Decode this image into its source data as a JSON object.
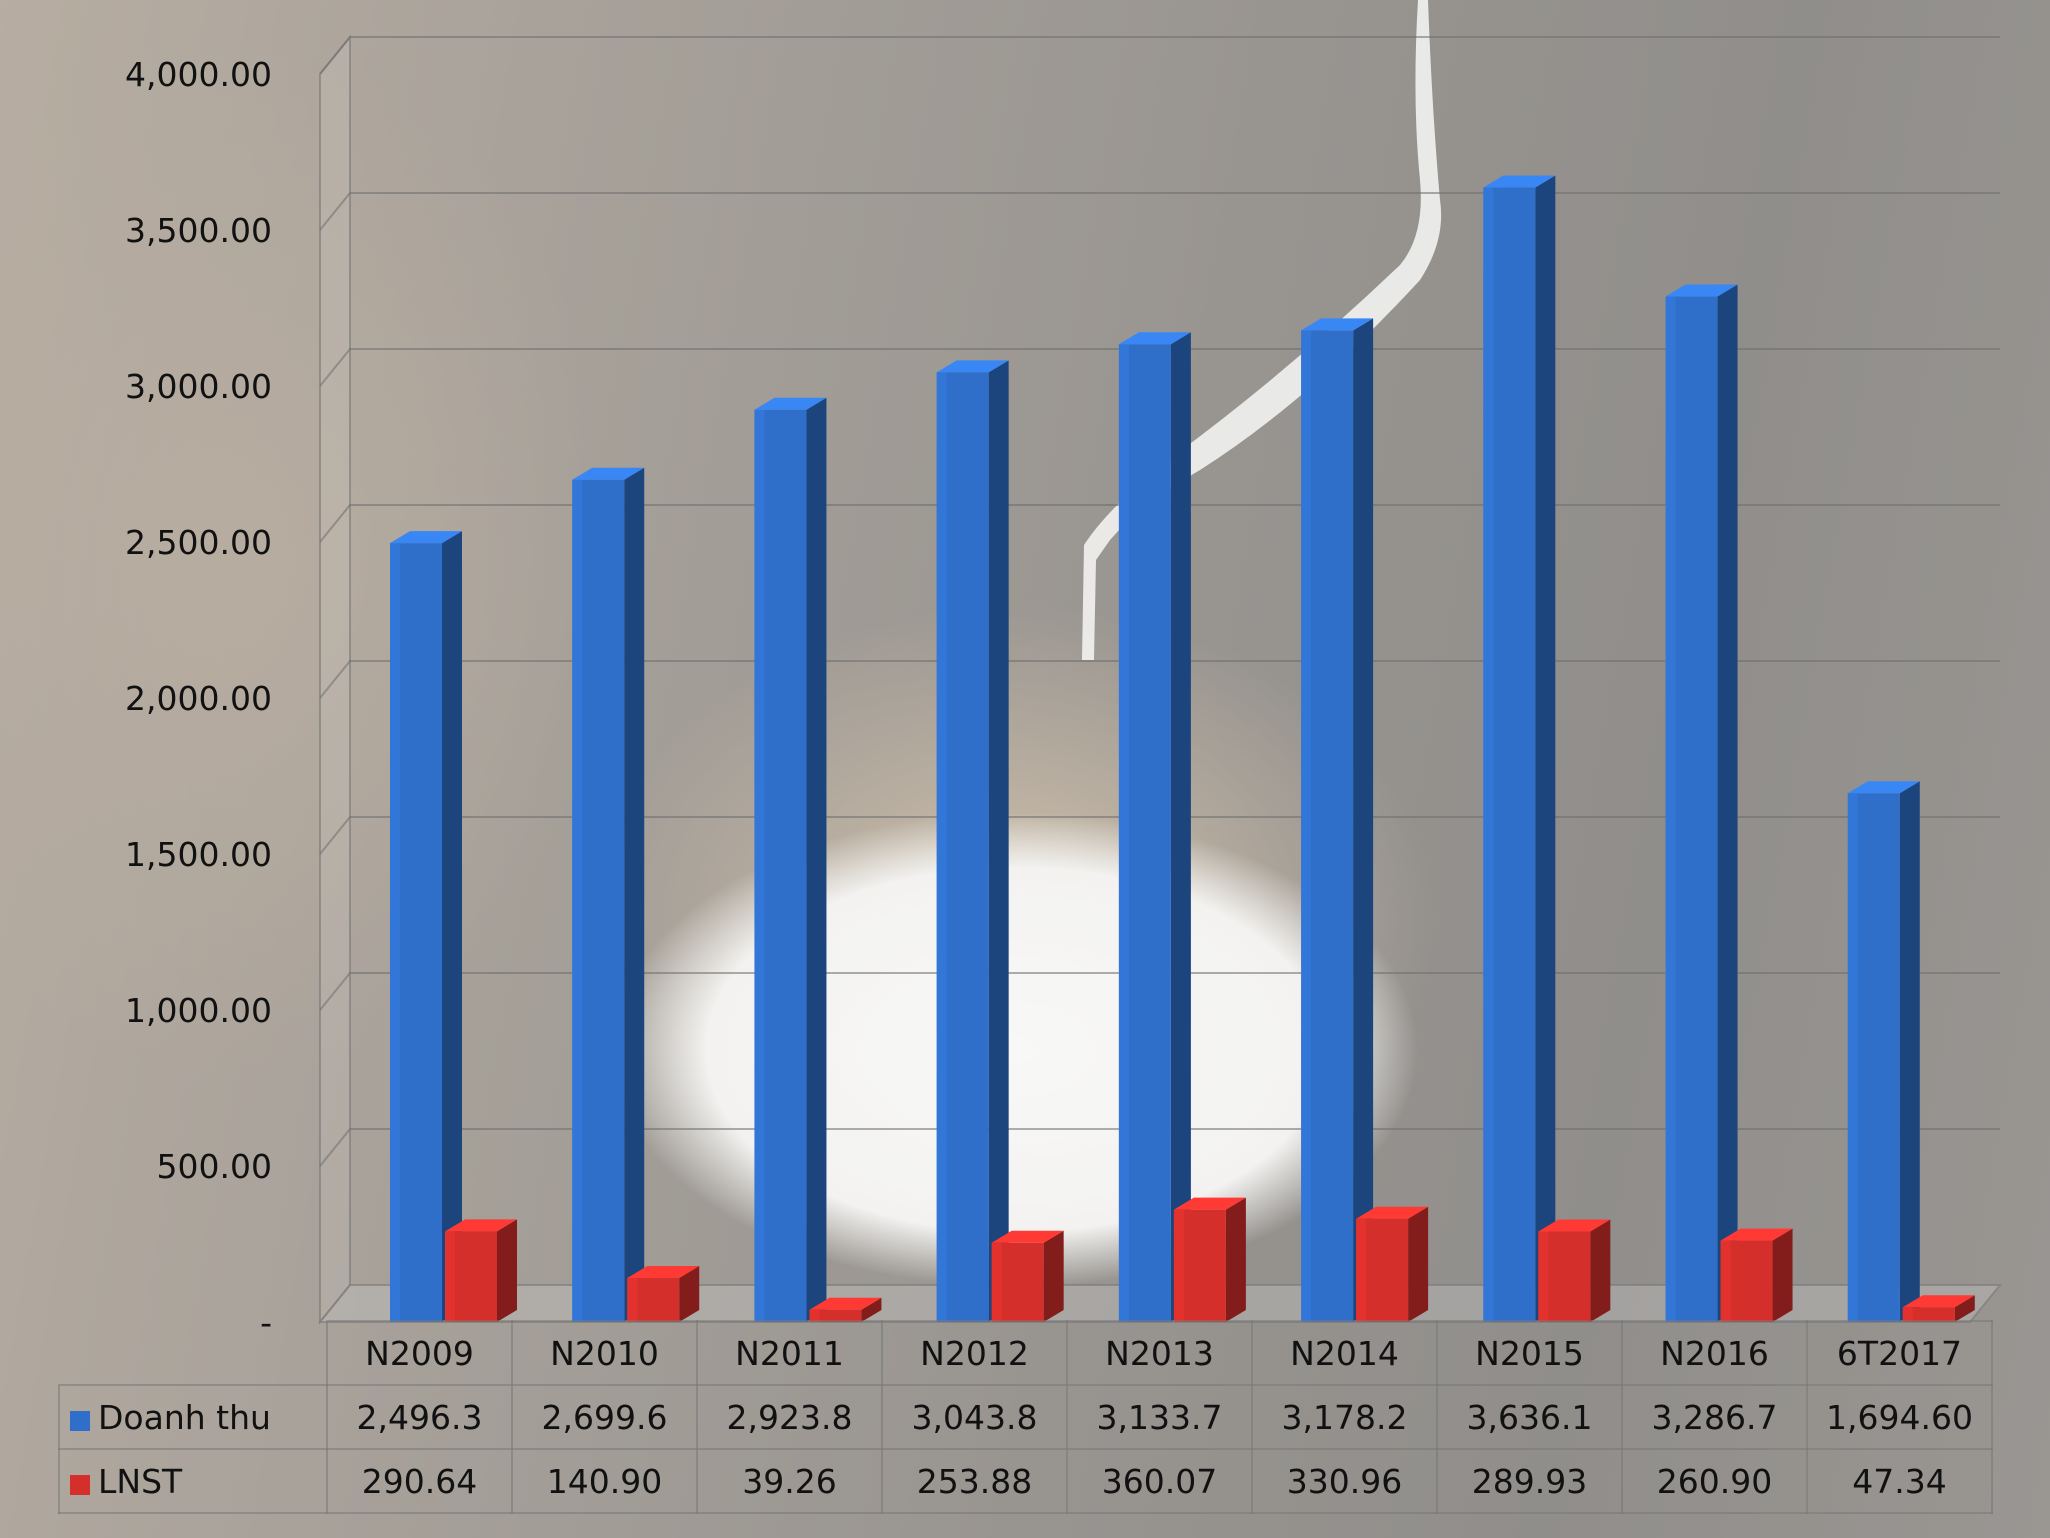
{
  "chart_data": {
    "type": "bar",
    "style": "3d-clustered-column",
    "categories": [
      "N2009",
      "N2010",
      "N2011",
      "N2012",
      "N2013",
      "N2014",
      "N2015",
      "N2016",
      "6T2017"
    ],
    "series": [
      {
        "name": "Doanh thu",
        "color": "#2f6fc9",
        "values": [
          2496.3,
          2699.6,
          2923.8,
          3043.8,
          3133.7,
          3178.2,
          3636.1,
          3286.7,
          1694.6
        ],
        "labels": [
          "2,496.3",
          "2,699.6",
          "2,923.8",
          "3,043.8",
          "3,133.7",
          "3,178.2",
          "3,636.1",
          "3,286.7",
          "1,694.60"
        ]
      },
      {
        "name": "LNST",
        "color": "#d42f2b",
        "values": [
          290.64,
          140.9,
          39.26,
          253.88,
          360.07,
          330.96,
          289.93,
          260.9,
          47.34
        ],
        "labels": [
          "290.64",
          "140.90",
          "39.26",
          "253.88",
          "360.07",
          "330.96",
          "289.93",
          "260.90",
          "47.34"
        ]
      }
    ],
    "y_ticks": [
      {
        "value": 0,
        "label": "-"
      },
      {
        "value": 500,
        "label": "500.00"
      },
      {
        "value": 1000,
        "label": "1,000.00"
      },
      {
        "value": 1500,
        "label": "1,500.00"
      },
      {
        "value": 2000,
        "label": "2,000.00"
      },
      {
        "value": 2500,
        "label": "2,500.00"
      },
      {
        "value": 3000,
        "label": "3,000.00"
      },
      {
        "value": 3500,
        "label": "3,500.00"
      },
      {
        "value": 4000,
        "label": "4,000.00"
      }
    ],
    "ylim": [
      0,
      4000
    ],
    "grid": true,
    "legend": "data-table-below",
    "title": "",
    "xlabel": "",
    "ylabel": ""
  }
}
